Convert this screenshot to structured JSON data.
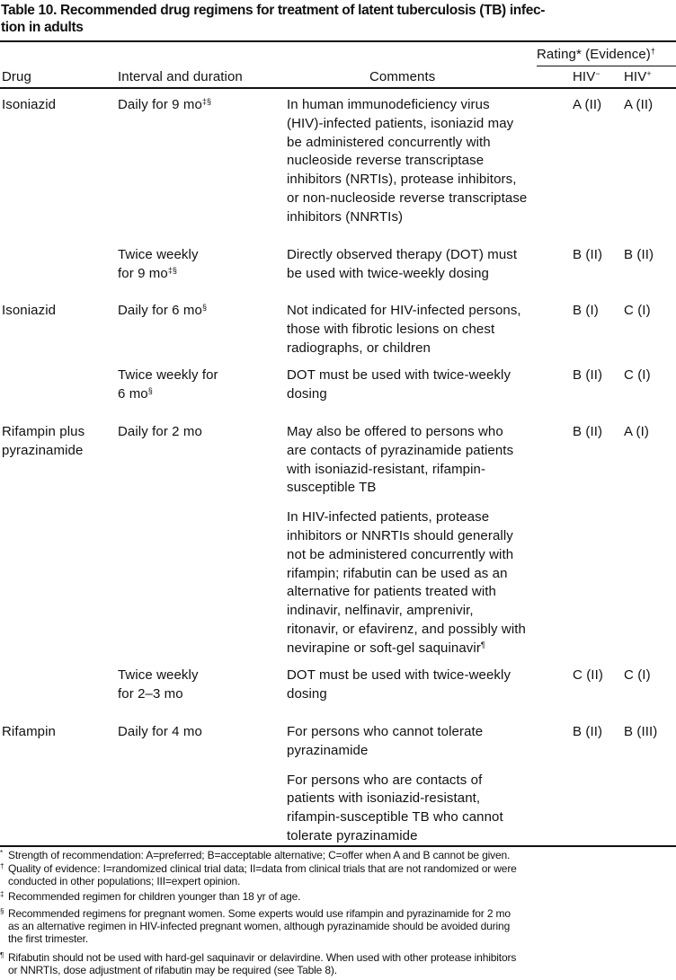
{
  "title_lines": [
    "Table 10. Recommended drug regimens for treatment of latent tuberculosis (TB) infec-",
    "tion in adults"
  ],
  "table": {
    "group_header": {
      "text": "Rating* (Evidence)",
      "sup": "†"
    },
    "columns": [
      "Drug",
      "Interval and duration",
      "Comments",
      {
        "text": "HIV",
        "sup": "−"
      },
      {
        "text": "HIV",
        "sup": "+"
      }
    ],
    "rows": [
      {
        "drug": [
          "Isoniazid"
        ],
        "interval": [
          {
            "text": "Daily for 9 mo",
            "sup": "‡§"
          }
        ],
        "comments": [
          [
            "In human immunodeficiency virus",
            "(HIV)-infected patients, isoniazid may",
            "be administered concurrently with",
            "nucleoside reverse transcriptase",
            "inhibitors (NRTIs), protease inhibitors,",
            "or non-nucleoside reverse transcriptase",
            "inhibitors (NNRTIs)"
          ]
        ],
        "hiv_neg": "A (II)",
        "hiv_pos": "A (II)"
      },
      {
        "drug": [],
        "interval": [
          "Twice weekly",
          {
            "text": "for 9 mo",
            "sup": "‡§"
          }
        ],
        "comments": [
          [
            "Directly observed therapy (DOT) must",
            "be used with twice-weekly dosing"
          ]
        ],
        "hiv_neg": "B (II)",
        "hiv_pos": "B (II)"
      },
      {
        "drug": [
          "Isoniazid"
        ],
        "interval": [
          {
            "text": "Daily for 6 mo",
            "sup": "§"
          }
        ],
        "comments": [
          [
            "Not indicated for HIV-infected persons,",
            "those with fibrotic lesions on chest",
            "radiographs, or children"
          ]
        ],
        "hiv_neg": "B (I)",
        "hiv_pos": "C (I)"
      },
      {
        "drug": [],
        "interval": [
          "Twice weekly for",
          {
            "text": "6 mo",
            "sup": "§"
          }
        ],
        "comments": [
          [
            "DOT must be used with twice-weekly",
            "dosing"
          ]
        ],
        "hiv_neg": "B (II)",
        "hiv_pos": "C (I)"
      },
      {
        "drug": [
          "Rifampin plus",
          "pyrazinamide"
        ],
        "interval": [
          "Daily for 2 mo"
        ],
        "comments": [
          [
            "May also be offered to persons who",
            "are contacts of pyrazinamide patients",
            "with isoniazid-resistant, rifampin-",
            "susceptible TB"
          ],
          [
            "In HIV-infected patients, protease",
            "inhibitors or NNRTIs should generally",
            "not be administered concurrently with",
            "rifampin; rifabutin can be used as an",
            "alternative for patients treated with",
            "indinavir, nelfinavir, amprenivir,",
            "ritonavir, or efavirenz, and possibly with",
            {
              "text": "nevirapine or soft-gel saquinavir",
              "sup": "¶"
            }
          ]
        ],
        "hiv_neg": "B (II)",
        "hiv_pos": "A (I)"
      },
      {
        "drug": [],
        "interval": [
          "Twice weekly",
          "for 2–3 mo"
        ],
        "comments": [
          [
            "DOT must be used with twice-weekly",
            "dosing"
          ]
        ],
        "hiv_neg": "C (II)",
        "hiv_pos": "C (I)"
      },
      {
        "drug": [
          "Rifampin"
        ],
        "interval": [
          "Daily for 4 mo"
        ],
        "comments": [
          [
            "For persons who cannot tolerate",
            "pyrazinamide"
          ],
          [
            "For persons who are contacts of",
            "patients with isoniazid-resistant,",
            "rifampin-susceptible TB who cannot",
            "tolerate pyrazinamide"
          ]
        ],
        "hiv_neg": "B (II)",
        "hiv_pos": "B (III)"
      }
    ]
  },
  "footnotes": [
    {
      "symbol": "*",
      "lines": [
        "Strength of recommendation: A=preferred; B=acceptable alternative; C=offer when A and B cannot be given."
      ]
    },
    {
      "symbol": "†",
      "lines": [
        "Quality of evidence: I=randomized clinical trial data; II=data from clinical trials that are not randomized or were",
        "conducted in other populations; III=expert opinion."
      ]
    },
    {
      "symbol": "‡",
      "lines": [
        "Recommended regimen for children younger than 18 yr of age."
      ]
    },
    {
      "symbol": "§",
      "lines": [
        "Recommended regimens for pregnant women. Some experts would use rifampin and pyrazinamide for 2 mo",
        "as an alternative regimen in HIV-infected pregnant women, although pyrazinamide should be avoided during",
        "the first trimester."
      ]
    },
    {
      "symbol": "¶",
      "lines": [
        "Rifabutin should not be used with hard-gel saquinavir or delavirdine. When used with other protease inhibitors",
        "or NNRTIs, dose adjustment of rifabutin may be required (see Table 8)."
      ]
    }
  ]
}
